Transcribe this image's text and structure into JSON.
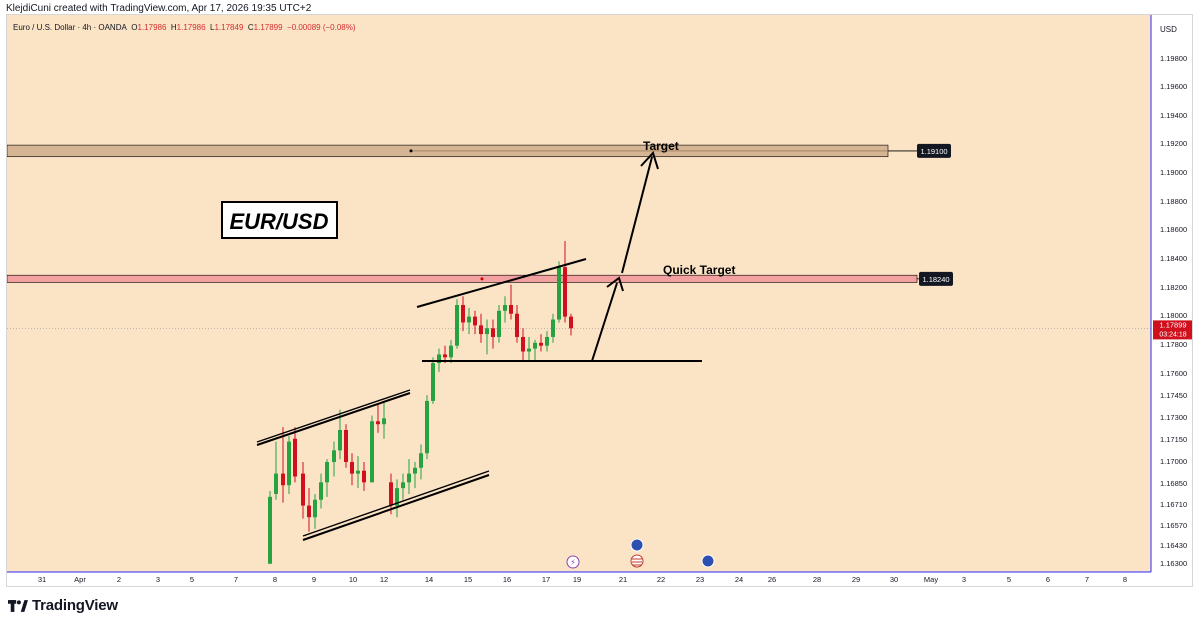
{
  "credit": "KlejdiCuni created with TradingView.com, Apr 17, 2026 19:35 UTC+2",
  "symbol": {
    "name": "Euro / U.S. Dollar · 4h · OANDA",
    "open_label": "O",
    "open": "1.17986",
    "high_label": "H",
    "high": "1.17986",
    "low_label": "L",
    "low": "1.17849",
    "close_label": "C",
    "close": "1.17899",
    "change": "−0.00089 (−0.08%)"
  },
  "currency": "USD",
  "brand": "TradingView",
  "colors": {
    "background": "#fbe3c6",
    "up": "#26a241",
    "down": "#d0111d",
    "target_zone": "#d5b593",
    "quick_zone": "#f2a0a0",
    "axis_border": "#2929ff"
  },
  "chart_data": {
    "type": "candlestick",
    "title": "EUR/USD",
    "timeframe": "4h",
    "ylim": [
      1.1623,
      1.2
    ],
    "y_ticks": [
      "1.19800",
      "1.19600",
      "1.19400",
      "1.19200",
      "1.19000",
      "1.18800",
      "1.18600",
      "1.18400",
      "1.18200",
      "1.18000",
      "1.17800",
      "1.17600",
      "1.17450",
      "1.17300",
      "1.17150",
      "1.17000",
      "1.16850",
      "1.16710",
      "1.16570",
      "1.16430",
      "1.16300"
    ],
    "x_ticks": [
      "31",
      "Apr",
      "2",
      "3",
      "5",
      "7",
      "8",
      "9",
      "10",
      "12",
      "14",
      "15",
      "16",
      "17",
      "19",
      "21",
      "22",
      "23",
      "24",
      "26",
      "28",
      "29",
      "30",
      "May",
      "3",
      "5",
      "6",
      "7",
      "8"
    ],
    "last_price": "1.17899",
    "countdown": "03:24:18",
    "candles": [
      {
        "t": "Apr 8 #1",
        "o": 1.1628,
        "h": 1.1678,
        "l": 1.1628,
        "c": 1.1674
      },
      {
        "t": "Apr 8 #2",
        "o": 1.1676,
        "h": 1.1712,
        "l": 1.1672,
        "c": 1.169
      },
      {
        "t": "Apr 8 #3",
        "o": 1.169,
        "h": 1.1722,
        "l": 1.167,
        "c": 1.1682
      },
      {
        "t": "Apr 8 #4",
        "o": 1.1682,
        "h": 1.1716,
        "l": 1.1676,
        "c": 1.1712
      },
      {
        "t": "Apr 8 #5",
        "o": 1.1714,
        "h": 1.1722,
        "l": 1.1684,
        "c": 1.1688
      },
      {
        "t": "Apr 9 #1",
        "o": 1.169,
        "h": 1.1698,
        "l": 1.1659,
        "c": 1.1668
      },
      {
        "t": "Apr 9 #2",
        "o": 1.1668,
        "h": 1.168,
        "l": 1.165,
        "c": 1.166
      },
      {
        "t": "Apr 9 #3",
        "o": 1.166,
        "h": 1.1676,
        "l": 1.1652,
        "c": 1.1672
      },
      {
        "t": "Apr 9 #4",
        "o": 1.1672,
        "h": 1.169,
        "l": 1.1666,
        "c": 1.1684
      },
      {
        "t": "Apr 9 #5",
        "o": 1.1684,
        "h": 1.17,
        "l": 1.1674,
        "c": 1.1698
      },
      {
        "t": "Apr 10 #1",
        "o": 1.1698,
        "h": 1.1712,
        "l": 1.1688,
        "c": 1.1706
      },
      {
        "t": "Apr 10 #2",
        "o": 1.1706,
        "h": 1.1734,
        "l": 1.17,
        "c": 1.172
      },
      {
        "t": "Apr 10 #3",
        "o": 1.172,
        "h": 1.1724,
        "l": 1.1694,
        "c": 1.1698
      },
      {
        "t": "Apr 10 #4",
        "o": 1.1698,
        "h": 1.1704,
        "l": 1.1682,
        "c": 1.169
      },
      {
        "t": "Apr 10 #5",
        "o": 1.169,
        "h": 1.1702,
        "l": 1.168,
        "c": 1.1692
      },
      {
        "t": "Apr 10 #6",
        "o": 1.1692,
        "h": 1.1698,
        "l": 1.1678,
        "c": 1.1684
      },
      {
        "t": "Apr 10 #7",
        "o": 1.1684,
        "h": 1.173,
        "l": 1.1684,
        "c": 1.1726
      },
      {
        "t": "Apr 12 #1",
        "o": 1.1726,
        "h": 1.1738,
        "l": 1.1718,
        "c": 1.1724
      },
      {
        "t": "Apr 12 #2",
        "o": 1.1724,
        "h": 1.174,
        "l": 1.1714,
        "c": 1.1728
      },
      {
        "t": "Apr 13 #1",
        "o": 1.1684,
        "h": 1.169,
        "l": 1.1662,
        "c": 1.1668
      },
      {
        "t": "Apr 13 #2",
        "o": 1.1668,
        "h": 1.1686,
        "l": 1.166,
        "c": 1.168
      },
      {
        "t": "Apr 13 #3",
        "o": 1.168,
        "h": 1.169,
        "l": 1.1672,
        "c": 1.1684
      },
      {
        "t": "Apr 13 #4",
        "o": 1.1684,
        "h": 1.17,
        "l": 1.1676,
        "c": 1.169
      },
      {
        "t": "Apr 13 #5",
        "o": 1.169,
        "h": 1.1698,
        "l": 1.168,
        "c": 1.1694
      },
      {
        "t": "Apr 13 #6",
        "o": 1.1694,
        "h": 1.171,
        "l": 1.1686,
        "c": 1.1704
      },
      {
        "t": "Apr 13 #7",
        "o": 1.1704,
        "h": 1.1744,
        "l": 1.17,
        "c": 1.174
      },
      {
        "t": "Apr 14 #1",
        "o": 1.174,
        "h": 1.177,
        "l": 1.1738,
        "c": 1.1766
      },
      {
        "t": "Apr 14 #2",
        "o": 1.1766,
        "h": 1.1776,
        "l": 1.176,
        "c": 1.1772
      },
      {
        "t": "Apr 14 #3",
        "o": 1.1772,
        "h": 1.1778,
        "l": 1.1766,
        "c": 1.177
      },
      {
        "t": "Apr 14 #4",
        "o": 1.177,
        "h": 1.1782,
        "l": 1.1766,
        "c": 1.1778
      },
      {
        "t": "Apr 14 #5",
        "o": 1.1778,
        "h": 1.181,
        "l": 1.1776,
        "c": 1.1806
      },
      {
        "t": "Apr 15 #1",
        "o": 1.1806,
        "h": 1.1812,
        "l": 1.1788,
        "c": 1.1794
      },
      {
        "t": "Apr 15 #2",
        "o": 1.1794,
        "h": 1.1804,
        "l": 1.1786,
        "c": 1.1798
      },
      {
        "t": "Apr 15 #3",
        "o": 1.1798,
        "h": 1.1802,
        "l": 1.1786,
        "c": 1.1792
      },
      {
        "t": "Apr 15 #4",
        "o": 1.1792,
        "h": 1.18,
        "l": 1.178,
        "c": 1.1786
      },
      {
        "t": "Apr 15 #5",
        "o": 1.1786,
        "h": 1.1796,
        "l": 1.1772,
        "c": 1.179
      },
      {
        "t": "Apr 15 #6",
        "o": 1.179,
        "h": 1.1796,
        "l": 1.1776,
        "c": 1.1784
      },
      {
        "t": "Apr 16 #1",
        "o": 1.1784,
        "h": 1.1806,
        "l": 1.178,
        "c": 1.1802
      },
      {
        "t": "Apr 16 #2",
        "o": 1.1802,
        "h": 1.1812,
        "l": 1.1794,
        "c": 1.1806
      },
      {
        "t": "Apr 16 #3",
        "o": 1.1806,
        "h": 1.182,
        "l": 1.1796,
        "c": 1.18
      },
      {
        "t": "Apr 16 #4",
        "o": 1.18,
        "h": 1.1806,
        "l": 1.178,
        "c": 1.1784
      },
      {
        "t": "Apr 16 #5",
        "o": 1.1784,
        "h": 1.179,
        "l": 1.1768,
        "c": 1.1774
      },
      {
        "t": "Apr 16 #6",
        "o": 1.1774,
        "h": 1.1784,
        "l": 1.1768,
        "c": 1.1776
      },
      {
        "t": "Apr 17 #1",
        "o": 1.1776,
        "h": 1.1782,
        "l": 1.1768,
        "c": 1.178
      },
      {
        "t": "Apr 17 #2",
        "o": 1.178,
        "h": 1.1786,
        "l": 1.1774,
        "c": 1.1778
      },
      {
        "t": "Apr 17 #3",
        "o": 1.1778,
        "h": 1.1788,
        "l": 1.1774,
        "c": 1.1784
      },
      {
        "t": "Apr 17 #4",
        "o": 1.1784,
        "h": 1.18,
        "l": 1.178,
        "c": 1.1796
      },
      {
        "t": "Apr 17 #5",
        "o": 1.1796,
        "h": 1.1836,
        "l": 1.1794,
        "c": 1.1832
      },
      {
        "t": "Apr 17 #6",
        "o": 1.1832,
        "h": 1.185,
        "l": 1.1794,
        "c": 1.1798
      },
      {
        "t": "Apr 17 #7",
        "o": 1.1798,
        "h": 1.18,
        "l": 1.1785,
        "c": 1.179
      }
    ],
    "zones": [
      {
        "name": "target-zone",
        "top": 1.1916,
        "bottom": 1.1908,
        "label": "1.19100"
      },
      {
        "name": "quick-target-zone",
        "top": 1.18265,
        "bottom": 1.18215,
        "label": "1.18240"
      }
    ],
    "annotations": [
      {
        "text": "EUR/USD",
        "type": "title-box"
      },
      {
        "text": "Target",
        "type": "label"
      },
      {
        "text": "Quick Target",
        "type": "label"
      }
    ]
  }
}
